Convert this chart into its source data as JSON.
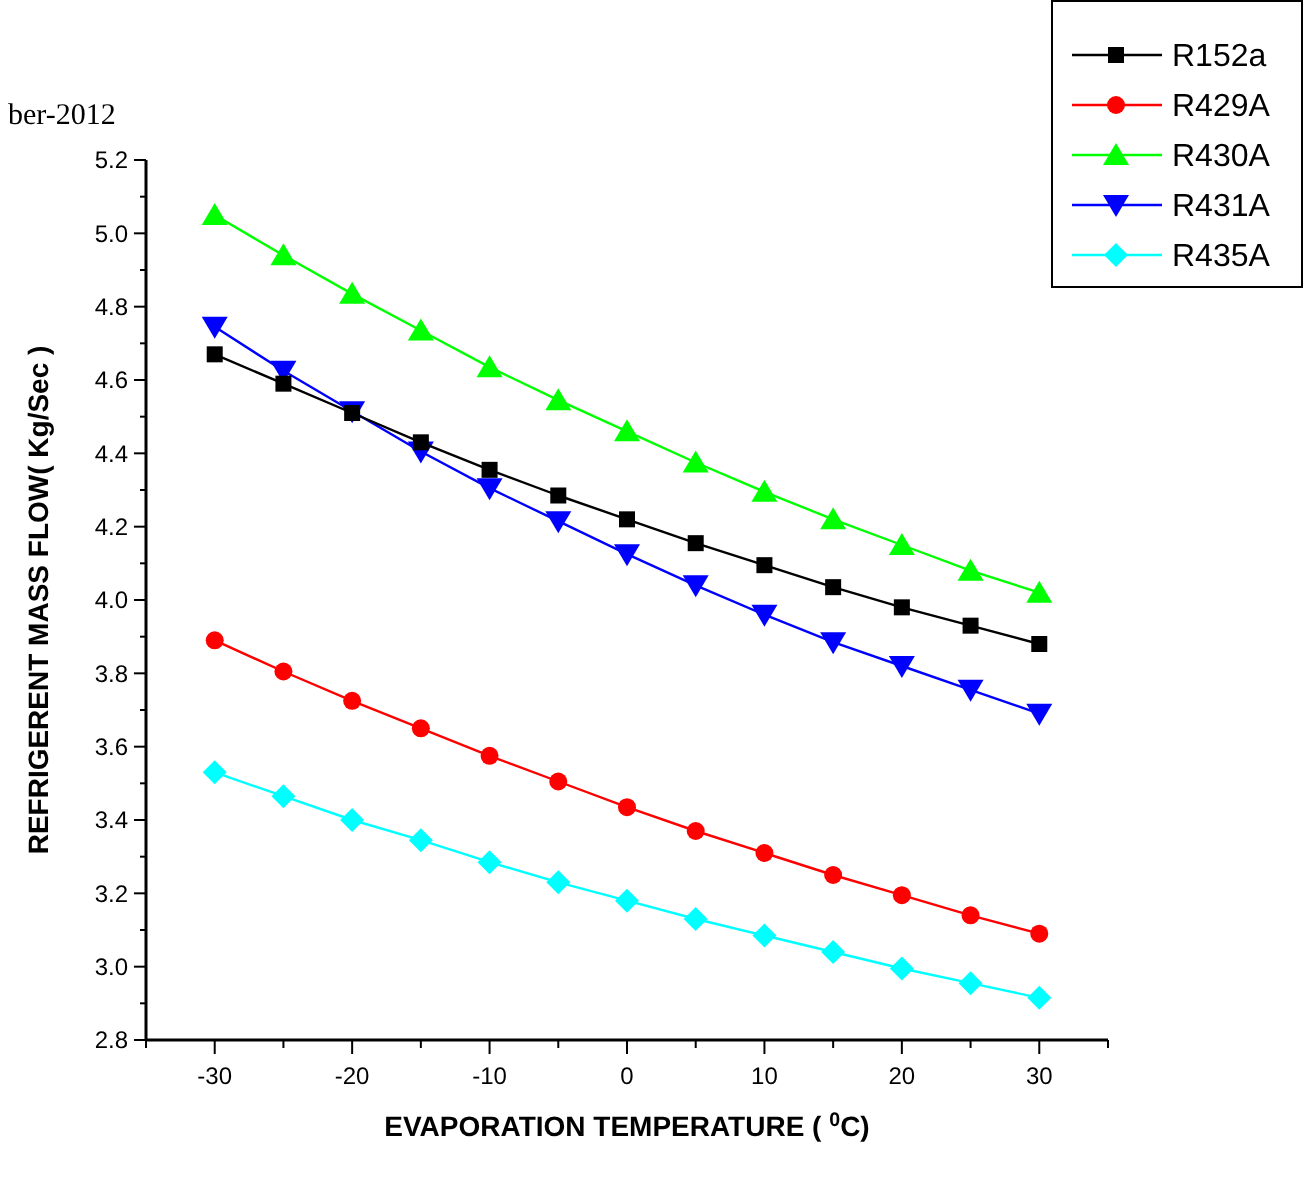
{
  "chart_data": {
    "type": "line",
    "xlabel": "EVAPORATION TEMPERATURE ( $^{0}$C)",
    "ylabel": "REFRIGERENT MASS FLOW( Kg/Sec )",
    "annotations": [
      "ber-2012"
    ],
    "x": [
      -30,
      -25,
      -20,
      -15,
      -10,
      -5,
      0,
      5,
      10,
      15,
      20,
      25,
      30
    ],
    "xlim": [
      -35,
      35
    ],
    "xticks": [
      {
        "value": -35,
        "label": null
      },
      -30,
      {
        "value": -25,
        "label": null
      },
      -20,
      {
        "value": -15,
        "label": null
      },
      -10,
      {
        "value": -5,
        "label": null
      },
      0,
      {
        "value": 5,
        "label": null
      },
      10,
      {
        "value": 15,
        "label": null
      },
      20,
      {
        "value": 25,
        "label": null
      },
      30,
      {
        "value": 35,
        "label": null
      }
    ],
    "ylim": [
      2.8,
      5.2
    ],
    "yticks": [
      {
        "value": 2.8,
        "label": "2.8"
      },
      {
        "value": 2.9,
        "label": null
      },
      {
        "value": 3.0,
        "label": "3.0"
      },
      {
        "value": 3.1,
        "label": null
      },
      {
        "value": 3.2,
        "label": "3.2"
      },
      {
        "value": 3.3,
        "label": null
      },
      {
        "value": 3.4,
        "label": "3.4"
      },
      {
        "value": 3.5,
        "label": null
      },
      {
        "value": 3.6,
        "label": "3.6"
      },
      {
        "value": 3.7,
        "label": null
      },
      {
        "value": 3.8,
        "label": "3.8"
      },
      {
        "value": 3.9,
        "label": null
      },
      {
        "value": 4.0,
        "label": "4.0"
      },
      {
        "value": 4.1,
        "label": null
      },
      {
        "value": 4.2,
        "label": "4.2"
      },
      {
        "value": 4.3,
        "label": null
      },
      {
        "value": 4.4,
        "label": "4.4"
      },
      {
        "value": 4.5,
        "label": null
      },
      {
        "value": 4.6,
        "label": "4.6"
      },
      {
        "value": 4.7,
        "label": null
      },
      {
        "value": 4.8,
        "label": "4.8"
      },
      {
        "value": 4.9,
        "label": null
      },
      {
        "value": 5.0,
        "label": "5.0"
      },
      {
        "value": 5.1,
        "label": null
      },
      {
        "value": 5.2,
        "label": "5.2"
      }
    ],
    "legend": "top right",
    "grid": false,
    "line_style": "solid",
    "series": [
      {
        "name": "R152a",
        "color": "#000000",
        "marker": "square",
        "values": [
          4.67,
          4.59,
          4.51,
          4.43,
          4.355,
          4.285,
          4.22,
          4.155,
          4.095,
          4.035,
          3.98,
          3.93,
          3.88
        ]
      },
      {
        "name": "R429A",
        "color": "#ff0000",
        "marker": "circle",
        "values": [
          3.89,
          3.805,
          3.725,
          3.65,
          3.575,
          3.505,
          3.435,
          3.37,
          3.31,
          3.25,
          3.195,
          3.14,
          3.09
        ]
      },
      {
        "name": "R430A",
        "color": "#00ff00",
        "marker": "triangle",
        "values": [
          5.05,
          4.94,
          4.835,
          4.735,
          4.635,
          4.545,
          4.46,
          4.375,
          4.295,
          4.22,
          4.15,
          4.08,
          4.02
        ]
      },
      {
        "name": "R431A",
        "color": "#0000ff",
        "marker": "triangle-down",
        "values": [
          4.745,
          4.625,
          4.515,
          4.405,
          4.305,
          4.215,
          4.125,
          4.04,
          3.96,
          3.885,
          3.82,
          3.755,
          3.69
        ]
      },
      {
        "name": "R435A",
        "color": "#00ffff",
        "marker": "diamond",
        "values": [
          3.53,
          3.465,
          3.4,
          3.345,
          3.285,
          3.23,
          3.18,
          3.13,
          3.085,
          3.04,
          2.995,
          2.955,
          2.915
        ]
      }
    ]
  }
}
